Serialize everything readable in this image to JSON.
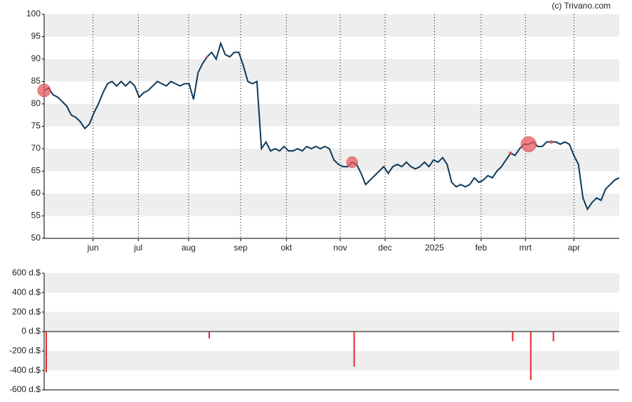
{
  "copyright": "(c) Trivano.com",
  "chart_data": [
    {
      "type": "line",
      "color": "#0f3a5a",
      "band_color": "#eeeeee",
      "vgrid": true,
      "values": [
        83,
        83.5,
        82,
        81.5,
        80.5,
        79.5,
        77.5,
        77,
        76,
        74.5,
        75.5,
        78,
        80,
        82.5,
        84.5,
        85,
        84,
        85,
        84,
        85,
        84,
        81.5,
        82.5,
        83,
        84,
        85,
        84.5,
        84,
        85,
        84.5,
        84,
        84.5,
        84.5,
        81,
        87,
        89,
        90.5,
        91.5,
        90,
        93.5,
        91,
        90.5,
        91.5,
        91.5,
        88.5,
        85,
        84.5,
        85,
        70,
        71.5,
        69.5,
        70,
        69.5,
        70.5,
        69.5,
        69.5,
        70,
        69.5,
        70.5,
        70,
        70.5,
        70,
        70.5,
        70,
        67.5,
        66.5,
        66,
        66,
        67,
        66.5,
        64.5,
        62,
        63,
        64,
        65,
        66,
        64.5,
        66,
        66.5,
        66,
        67,
        66,
        65.5,
        66,
        67,
        66,
        67.5,
        67,
        68,
        66.5,
        62.5,
        61.5,
        62,
        61.5,
        62,
        63.5,
        62.5,
        63,
        64,
        63.5,
        65,
        66,
        67.5,
        69,
        68.5,
        70,
        71,
        71,
        71.5,
        70.5,
        70.5,
        71.5,
        71.5,
        71.5,
        71,
        71.5,
        71,
        68.5,
        66.5,
        59,
        56.5,
        58,
        59,
        58.5,
        61,
        62,
        63,
        63.5
      ],
      "xlim": [
        0,
        127
      ],
      "ylim": [
        50,
        100
      ],
      "yticks": [
        50,
        55,
        60,
        65,
        70,
        75,
        80,
        85,
        90,
        95,
        100
      ],
      "xticks": [
        {
          "value": 10.8,
          "label": "jun"
        },
        {
          "value": 20.8,
          "label": "jul"
        },
        {
          "value": 31.9,
          "label": "aug"
        },
        {
          "value": 43.4,
          "label": "sep"
        },
        {
          "value": 53.5,
          "label": "okt"
        },
        {
          "value": 65.4,
          "label": "nov"
        },
        {
          "value": 75.3,
          "label": "dec"
        },
        {
          "value": 86.2,
          "label": "2025"
        },
        {
          "value": 96.5,
          "label": "feb"
        },
        {
          "value": 106.3,
          "label": "mrt"
        },
        {
          "value": 117.0,
          "label": "apr"
        }
      ]
    },
    {
      "type": "bar",
      "color": "#e8262e",
      "marker_color": "#e8595e",
      "band_color": "#eeeeee",
      "x": [
        0,
        36,
        68,
        103,
        107,
        112
      ],
      "values": [
        -420,
        -70,
        -360,
        -100,
        -500,
        -100
      ],
      "xlim": [
        0,
        127
      ],
      "ylim": [
        -600,
        600
      ],
      "yticks": [
        {
          "value": -600,
          "label": "-600 d.$"
        },
        {
          "value": -400,
          "label": "-400 d.$"
        },
        {
          "value": -200,
          "label": "-200 d.$"
        },
        {
          "value": 0,
          "label": "0 d.$"
        },
        {
          "value": 200,
          "label": "200 d.$"
        },
        {
          "value": 400,
          "label": "400 d.$"
        },
        {
          "value": 600,
          "label": "600 d.$"
        }
      ]
    }
  ]
}
